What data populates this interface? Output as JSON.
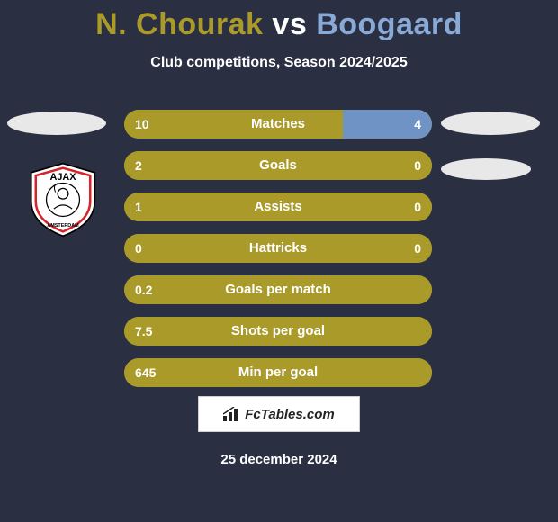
{
  "background_color": "#2b2f42",
  "title": {
    "player1_name": "N. Chourak",
    "vs_text": "vs",
    "player2_name": "Boogaard",
    "player1_color": "#aa9a2a",
    "vs_color": "#ffffff",
    "player2_color": "#89aad6"
  },
  "subtitle": "Club competitions, Season 2024/2025",
  "photo_placeholder_color": "#e8e8e8",
  "badge": {
    "primary_color": "#d8232a",
    "background_color": "#ffffff",
    "text_color": "#000000",
    "name": "AJAX",
    "city": "AMSTERDAM"
  },
  "stats": {
    "row_bg_color": "#aa9a2a",
    "left_fill_color": "#aa9a2a",
    "right_fill_color": "#6f93c4",
    "rows": [
      {
        "label": "Matches",
        "left_val": "10",
        "right_val": "4",
        "left_pct": 71,
        "right_pct": 29
      },
      {
        "label": "Goals",
        "left_val": "2",
        "right_val": "0",
        "left_pct": 100,
        "right_pct": 0
      },
      {
        "label": "Assists",
        "left_val": "1",
        "right_val": "0",
        "left_pct": 100,
        "right_pct": 0
      },
      {
        "label": "Hattricks",
        "left_val": "0",
        "right_val": "0",
        "left_pct": 100,
        "right_pct": 0
      },
      {
        "label": "Goals per match",
        "left_val": "0.2",
        "right_val": "",
        "left_pct": 100,
        "right_pct": 0
      },
      {
        "label": "Shots per goal",
        "left_val": "7.5",
        "right_val": "",
        "left_pct": 100,
        "right_pct": 0
      },
      {
        "label": "Min per goal",
        "left_val": "645",
        "right_val": "",
        "left_pct": 100,
        "right_pct": 0
      }
    ]
  },
  "footer": {
    "logo_text": "FcTables.com",
    "date": "25 december 2024"
  }
}
